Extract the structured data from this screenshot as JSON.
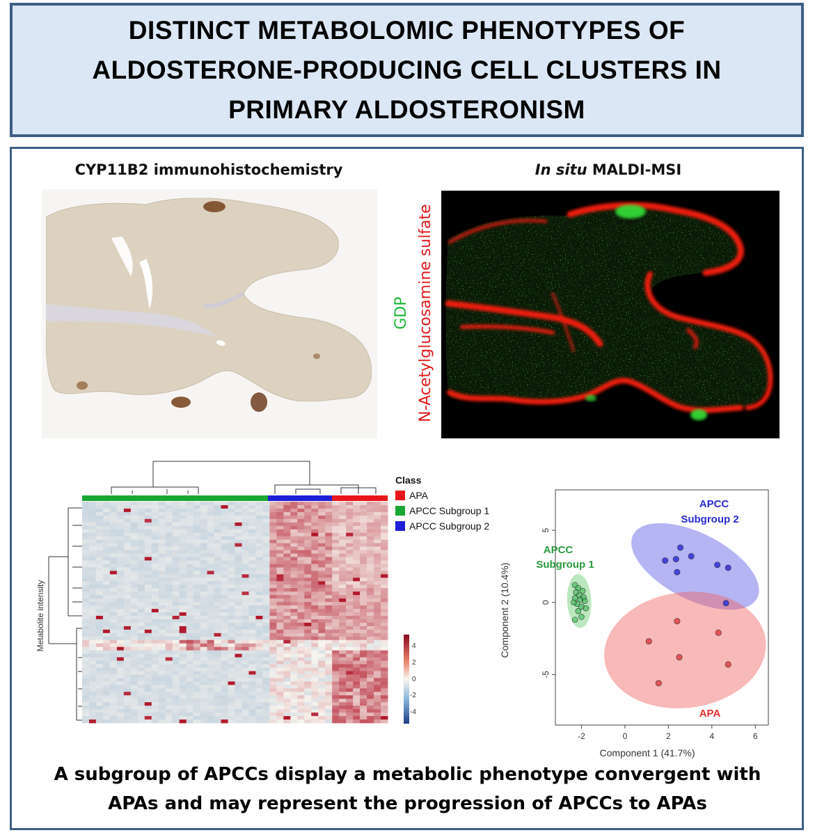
{
  "title": {
    "line1": "DISTINCT METABOLOMIC PHENOTYPES OF",
    "line2": "ALDOSTERONE-PRODUCING CELL CLUSTERS IN",
    "line3": "PRIMARY ALDOSTERONISM"
  },
  "panels": {
    "ihc": {
      "label": "CYP11B2 immunohistochemistry"
    },
    "maldi": {
      "label_italic": "In situ",
      "label_rest": " MALDI-MSI",
      "green_label": "GDP",
      "red_label": "N-Acetylglucosamine sulfate"
    },
    "heatmap": {
      "ylabel": "Metabolite intensity",
      "legend_title": "Class",
      "classes": [
        {
          "name": "APA",
          "color": "#e8161b"
        },
        {
          "name": "APCC Subgroup 1",
          "color": "#19a733"
        },
        {
          "name": "APCC Subgroup 2",
          "color": "#1d1fd6"
        }
      ],
      "scale_ticks": [
        "4",
        "2",
        "0",
        "-2",
        "-4"
      ]
    },
    "pca": {
      "xlabel": "Component 1 (41.7%)",
      "ylabel": "Component 2 (10.4%)",
      "group1_label_a": "APCC",
      "group1_label_b": "Subgroup 1",
      "group2_label_a": "APCC",
      "group2_label_b": "Subgroup 2",
      "group3_label": "APA"
    }
  },
  "chart_data": {
    "type": "scatter",
    "xlabel": "Component 1 (41.7%)",
    "ylabel": "Component 2 (10.4%)",
    "xticks": [
      -2,
      0,
      2,
      4,
      6
    ],
    "yticks": [
      5,
      0,
      -5
    ],
    "xlim": [
      -3.2,
      6.6
    ],
    "ylim": [
      -8.5,
      7.8
    ],
    "series": [
      {
        "name": "APCC Subgroup 1",
        "color": "#2db34a",
        "points": [
          [
            -2.3,
            1.2
          ],
          [
            -2.15,
            1.0
          ],
          [
            -2.25,
            0.7
          ],
          [
            -2.1,
            0.5
          ],
          [
            -2.3,
            0.3
          ],
          [
            -2.05,
            0.2
          ],
          [
            -2.2,
            -0.1
          ],
          [
            -1.95,
            0.8
          ],
          [
            -1.9,
            0.35
          ],
          [
            -2.0,
            -0.3
          ],
          [
            -1.85,
            0.1
          ],
          [
            -2.15,
            -0.6
          ],
          [
            -2.3,
            -1.2
          ],
          [
            -2.0,
            -1.0
          ],
          [
            -1.8,
            -0.4
          ],
          [
            -2.35,
            0.0
          ]
        ]
      },
      {
        "name": "APCC Subgroup 2",
        "color": "#3636d8",
        "points": [
          [
            2.55,
            3.8
          ],
          [
            3.05,
            3.2
          ],
          [
            2.35,
            3.0
          ],
          [
            1.85,
            2.9
          ],
          [
            2.4,
            2.1
          ],
          [
            4.25,
            2.6
          ],
          [
            4.75,
            2.4
          ],
          [
            4.65,
            -0.05
          ]
        ]
      },
      {
        "name": "APA",
        "color": "#e04848",
        "points": [
          [
            1.1,
            -2.7
          ],
          [
            2.4,
            -1.3
          ],
          [
            4.3,
            -2.1
          ],
          [
            2.5,
            -3.8
          ],
          [
            4.75,
            -4.3
          ],
          [
            1.55,
            -5.6
          ]
        ]
      }
    ]
  },
  "caption": {
    "line1": "A subgroup of APCCs display a metabolic phenotype convergent with",
    "line2": "APAs and may represent the progression of APCCs to APAs"
  }
}
